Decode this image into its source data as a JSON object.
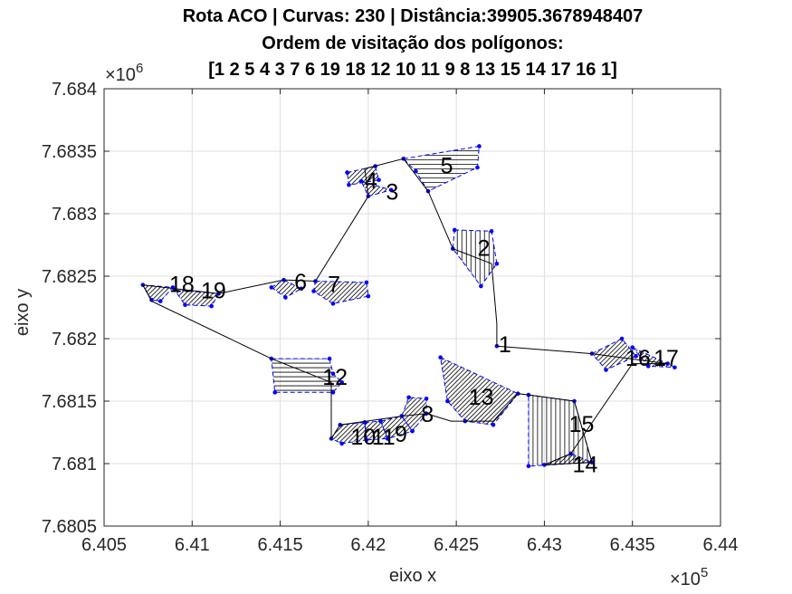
{
  "chart_data": {
    "type": "line",
    "title_lines": [
      "Rota ACO | Curvas: 230 | Distância:39905.3678948407",
      "Ordem de visitação dos polígonos:",
      "[1 2 5 4 3 7 6 19 18 12 10 11 9 8 13 15 14 17 16 1]"
    ],
    "xlabel": "eixo x",
    "ylabel": "eixo y",
    "x_multiplier": "×10",
    "x_exponent": "5",
    "y_multiplier": "×10",
    "y_exponent": "6",
    "xlim": [
      640500,
      644000
    ],
    "ylim": [
      7680500,
      7684000
    ],
    "x_ticks": [
      640500,
      641000,
      641500,
      642000,
      642500,
      643000,
      643500,
      644000
    ],
    "x_tick_labels": [
      "6.405",
      "6.41",
      "6.415",
      "6.42",
      "6.425",
      "6.43",
      "6.435",
      "6.44"
    ],
    "y_ticks": [
      7680500,
      7681000,
      7681500,
      7682000,
      7682500,
      7683000,
      7683500,
      7684000
    ],
    "y_tick_labels": [
      "7.6805",
      "7.681",
      "7.6815",
      "7.682",
      "7.6825",
      "7.683",
      "7.6835",
      "7.684"
    ],
    "grid": true,
    "colors": {
      "route": "#000000",
      "polygon": "#0000ff",
      "hatch": "#000000",
      "axis": "#262626",
      "grid": "#dfdfdf"
    },
    "polygons": [
      {
        "id": "1",
        "label_at": [
          642740,
          7681940
        ],
        "vertices": [
          [
            642730,
            7681940
          ]
        ],
        "hatch": "none"
      },
      {
        "id": "2",
        "label_at": [
          642620,
          7682710
        ],
        "vertices": [
          [
            642490,
            7682870
          ],
          [
            642700,
            7682860
          ],
          [
            642730,
            7682600
          ],
          [
            642640,
            7682420
          ],
          [
            642480,
            7682720
          ]
        ],
        "hatch": "vertical"
      },
      {
        "id": "5",
        "label_at": [
          642410,
          7683370
        ],
        "vertices": [
          [
            642200,
            7683440
          ],
          [
            642630,
            7683540
          ],
          [
            642620,
            7683370
          ],
          [
            642340,
            7683180
          ],
          [
            642270,
            7683340
          ]
        ],
        "hatch": "horizontal"
      },
      {
        "id": "4",
        "label_at": [
          641980,
          7683250
        ],
        "vertices": [
          [
            641880,
            7683330
          ],
          [
            642040,
            7683380
          ],
          [
            642060,
            7683270
          ],
          [
            641890,
            7683230
          ]
        ],
        "hatch": "diagonal"
      },
      {
        "id": "3",
        "label_at": [
          642100,
          7683160
        ],
        "vertices": [
          [
            641960,
            7683260
          ],
          [
            642130,
            7683190
          ],
          [
            642000,
            7683140
          ]
        ],
        "hatch": "diagonal"
      },
      {
        "id": "7",
        "label_at": [
          641770,
          7682420
        ],
        "vertices": [
          [
            641700,
            7682460
          ],
          [
            641990,
            7682450
          ],
          [
            642000,
            7682340
          ],
          [
            641800,
            7682280
          ],
          [
            641690,
            7682380
          ]
        ],
        "hatch": "diagonal"
      },
      {
        "id": "6",
        "label_at": [
          641580,
          7682440
        ],
        "vertices": [
          [
            641450,
            7682410
          ],
          [
            641520,
            7682470
          ],
          [
            641620,
            7682400
          ],
          [
            641530,
            7682330
          ]
        ],
        "hatch": "diagonal"
      },
      {
        "id": "19",
        "label_at": [
          641050,
          7682370
        ],
        "vertices": [
          [
            640900,
            7682390
          ],
          [
            641150,
            7682360
          ],
          [
            641110,
            7682260
          ],
          [
            640960,
            7682270
          ]
        ],
        "hatch": "diagonal"
      },
      {
        "id": "18",
        "label_at": [
          640870,
          7682420
        ],
        "vertices": [
          [
            640720,
            7682430
          ],
          [
            640890,
            7682410
          ],
          [
            640820,
            7682300
          ],
          [
            640770,
            7682310
          ]
        ],
        "hatch": "diagonal"
      },
      {
        "id": "12",
        "label_at": [
          641740,
          7681680
        ],
        "vertices": [
          [
            641450,
            7681840
          ],
          [
            641780,
            7681840
          ],
          [
            641800,
            7681720
          ],
          [
            641850,
            7681650
          ],
          [
            641800,
            7681570
          ],
          [
            641470,
            7681570
          ]
        ],
        "hatch": "horizontal"
      },
      {
        "id": "10",
        "label_at": [
          641900,
          7681200
        ],
        "vertices": [
          [
            641790,
            7681200
          ],
          [
            641840,
            7681310
          ],
          [
            641980,
            7681330
          ],
          [
            641990,
            7681190
          ],
          [
            641850,
            7681160
          ]
        ],
        "hatch": "diagonal"
      },
      {
        "id": "11",
        "label_at": [
          642020,
          7681200
        ],
        "vertices": [
          [
            641980,
            7681330
          ],
          [
            642070,
            7681340
          ],
          [
            642110,
            7681200
          ],
          [
            641990,
            7681190
          ]
        ],
        "hatch": "diagonal"
      },
      {
        "id": "9",
        "label_at": [
          642150,
          7681220
        ],
        "vertices": [
          [
            642070,
            7681340
          ],
          [
            642190,
            7681380
          ],
          [
            642250,
            7681260
          ],
          [
            642110,
            7681200
          ]
        ],
        "hatch": "diagonal"
      },
      {
        "id": "8",
        "label_at": [
          642300,
          7681380
        ],
        "vertices": [
          [
            642190,
            7681380
          ],
          [
            642230,
            7681530
          ],
          [
            642330,
            7681520
          ],
          [
            642330,
            7681400
          ],
          [
            642250,
            7681260
          ]
        ],
        "hatch": "diagonal"
      },
      {
        "id": "13",
        "label_at": [
          642570,
          7681520
        ],
        "vertices": [
          [
            642410,
            7681850
          ],
          [
            642850,
            7681560
          ],
          [
            642710,
            7681310
          ],
          [
            642550,
            7681340
          ],
          [
            642450,
            7681500
          ]
        ],
        "hatch": "diagonal"
      },
      {
        "id": "15",
        "label_at": [
          643140,
          7681300
        ],
        "vertices": [
          [
            642910,
            7681550
          ],
          [
            643170,
            7681500
          ],
          [
            643270,
            7681010
          ],
          [
            642910,
            7680980
          ]
        ],
        "hatch": "vertical"
      },
      {
        "id": "14",
        "label_at": [
          643160,
          7680980
        ],
        "vertices": [
          [
            643000,
            7680990
          ],
          [
            643270,
            7681010
          ],
          [
            643150,
            7681080
          ]
        ],
        "hatch": "diagonal"
      },
      {
        "id": "16",
        "label_at": [
          643460,
          7681830
        ],
        "vertices": [
          [
            643270,
            7681880
          ],
          [
            643440,
            7682000
          ],
          [
            643520,
            7681860
          ],
          [
            643350,
            7681750
          ]
        ],
        "hatch": "diagonal"
      },
      {
        "id": "17",
        "label_at": [
          643620,
          7681830
        ],
        "vertices": [
          [
            643500,
            7681930
          ],
          [
            643700,
            7681800
          ],
          [
            643740,
            7681770
          ],
          [
            643590,
            7681780
          ]
        ],
        "hatch": "diagonal"
      }
    ],
    "route": {
      "name": "ACO route",
      "order": [
        "1",
        "2",
        "5",
        "4",
        "3",
        "7",
        "6",
        "19",
        "18",
        "12",
        "10",
        "11",
        "9",
        "8",
        "13",
        "15",
        "14",
        "17",
        "16",
        "1"
      ],
      "points": [
        [
          642730,
          7681940
        ],
        [
          642730,
          7682120
        ],
        [
          642700,
          7682600
        ],
        [
          642480,
          7682720
        ],
        [
          642340,
          7683180
        ],
        [
          642200,
          7683440
        ],
        [
          641980,
          7683360
        ],
        [
          642000,
          7683140
        ],
        [
          641700,
          7682460
        ],
        [
          641520,
          7682470
        ],
        [
          641150,
          7682360
        ],
        [
          640720,
          7682430
        ],
        [
          640770,
          7682300
        ],
        [
          641450,
          7681840
        ],
        [
          641790,
          7681650
        ],
        [
          641790,
          7681200
        ],
        [
          641840,
          7681310
        ],
        [
          642190,
          7681380
        ],
        [
          642330,
          7681400
        ],
        [
          642470,
          7681340
        ],
        [
          642710,
          7681340
        ],
        [
          642850,
          7681560
        ],
        [
          642910,
          7681550
        ],
        [
          643170,
          7681500
        ],
        [
          643270,
          7681010
        ],
        [
          643270,
          7681010
        ],
        [
          643000,
          7680990
        ],
        [
          643150,
          7681080
        ],
        [
          643500,
          7681800
        ],
        [
          643700,
          7681800
        ],
        [
          643270,
          7681880
        ],
        [
          642730,
          7681940
        ]
      ]
    }
  }
}
